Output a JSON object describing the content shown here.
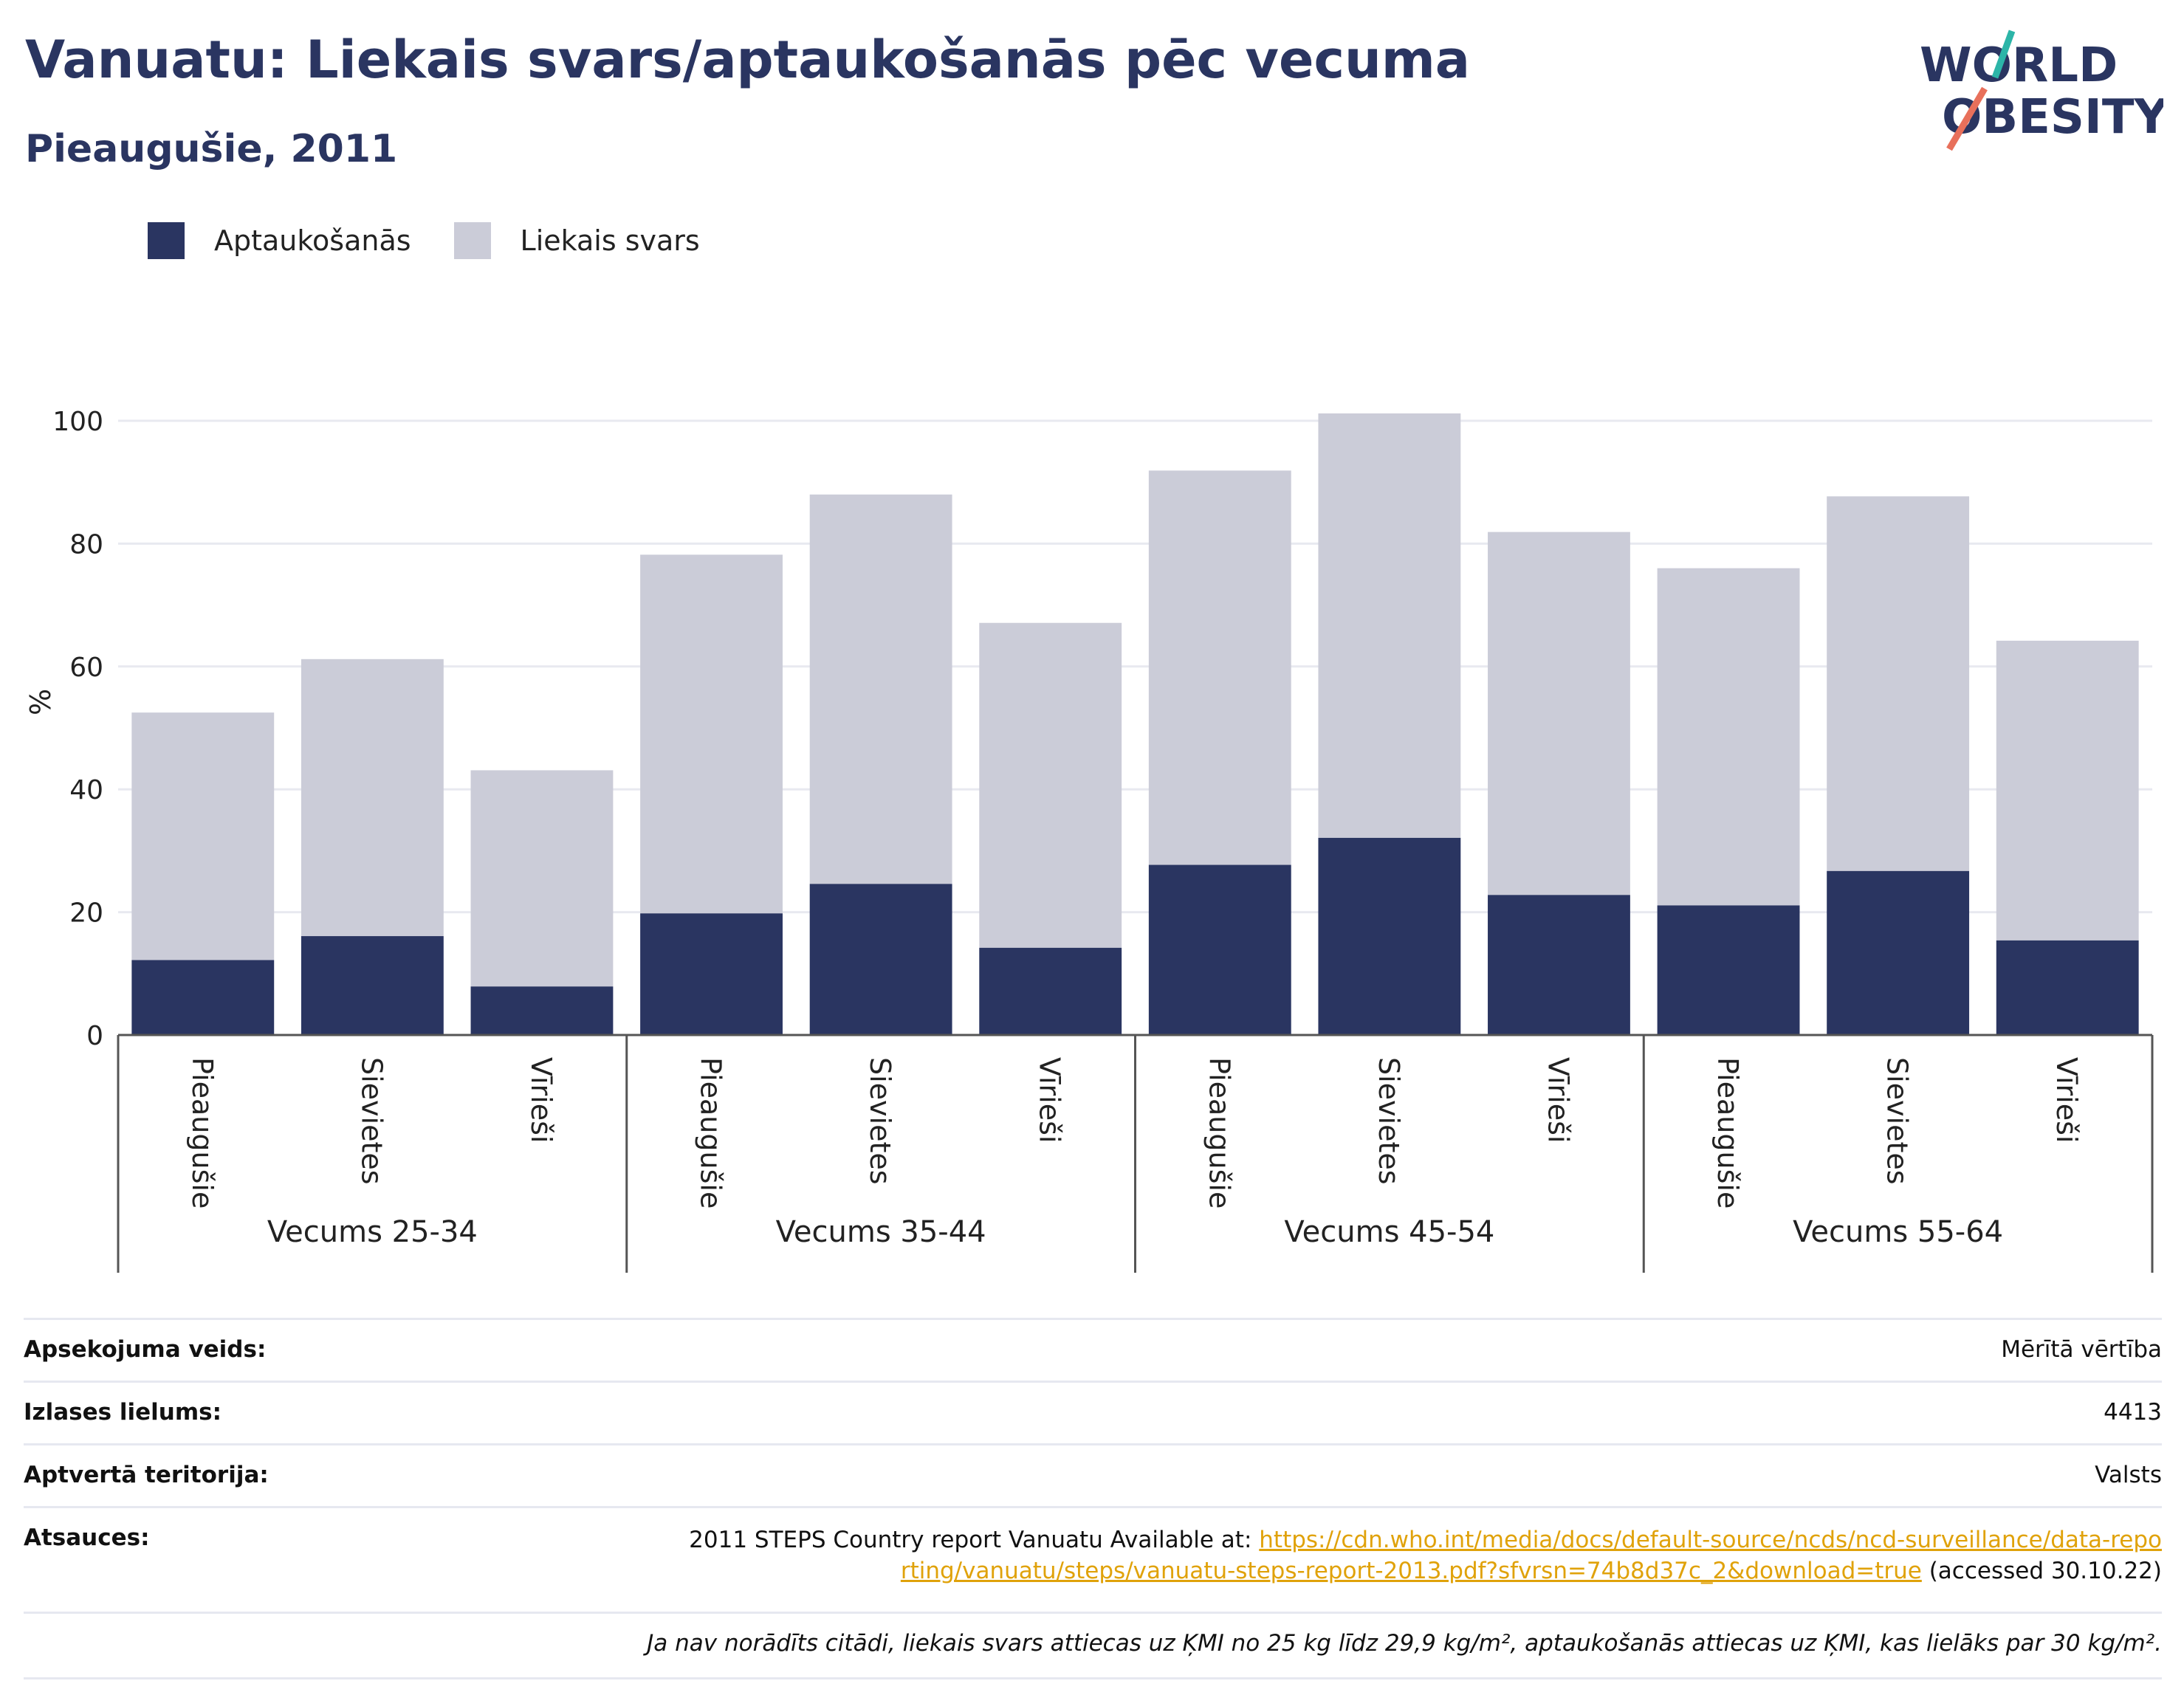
{
  "header": {
    "title": "Vanuatu: Liekais svars/aptaukošanās pēc vecuma",
    "subtitle": "Pieaugušie, 2011"
  },
  "logo": {
    "line1": "WORLD",
    "line2": "OBESITY",
    "icon": "world-obesity-logo"
  },
  "legend": {
    "items": [
      "Aptaukošanās",
      "Liekais svars"
    ]
  },
  "colors": {
    "obesity": "#2a3561",
    "overweight": "#cbccd8",
    "grid": "#e8e9f0",
    "axis": "#555555",
    "link": "#e0a20a",
    "title": "#2a3561"
  },
  "chart_data": {
    "type": "bar",
    "stacked": true,
    "ylabel": "%",
    "ylim": [
      0,
      100
    ],
    "yticks": [
      0,
      20,
      40,
      60,
      80,
      100
    ],
    "grid": true,
    "legend_position": "top-left",
    "groups": [
      "Vecums 25-34",
      "Vecums 35-44",
      "Vecums 45-54",
      "Vecums 55-64"
    ],
    "categories": [
      "Pieaugušie",
      "Sievietes",
      "Vīrieši",
      "Pieaugušie",
      "Sievietes",
      "Vīrieši",
      "Pieaugušie",
      "Sievietes",
      "Vīrieši",
      "Pieaugušie",
      "Sievietes",
      "Vīrieši"
    ],
    "series": [
      {
        "name": "Aptaukošanās",
        "values": [
          12.2,
          16.1,
          7.9,
          19.8,
          24.6,
          14.2,
          27.7,
          32.1,
          22.8,
          21.1,
          26.7,
          15.4
        ]
      },
      {
        "name": "Liekais svars",
        "values": [
          40.3,
          45.1,
          35.2,
          58.4,
          63.4,
          52.9,
          64.2,
          69.1,
          59.1,
          54.9,
          61.0,
          48.8
        ]
      }
    ]
  },
  "meta": {
    "survey_type_label": "Apsekojuma veids:",
    "survey_type_value": "Mērītā vērtība",
    "sample_size_label": "Izlases lielums:",
    "sample_size_value": "4413",
    "coverage_label": "Aptvertā teritorija:",
    "coverage_value": "Valsts",
    "references_label": "Atsauces:",
    "references_text": "2011 STEPS Country report Vanuatu Available at: ",
    "references_link": "https://cdn.who.int/media/docs/default-source/ncds/ncd-surveillance/data-reporting/vanuatu/steps/vanuatu-steps-report-2013.pdf?sfvrsn=74b8d37c_2&download=true",
    "references_accessed": " (accessed 30.10.22)",
    "note": "Ja nav norādīts citādi, liekais svars attiecas uz ĶMI no 25 kg līdz 29,9 kg/m², aptaukošanās attiecas uz ĶMI, kas lielāks par 30 kg/m²."
  }
}
